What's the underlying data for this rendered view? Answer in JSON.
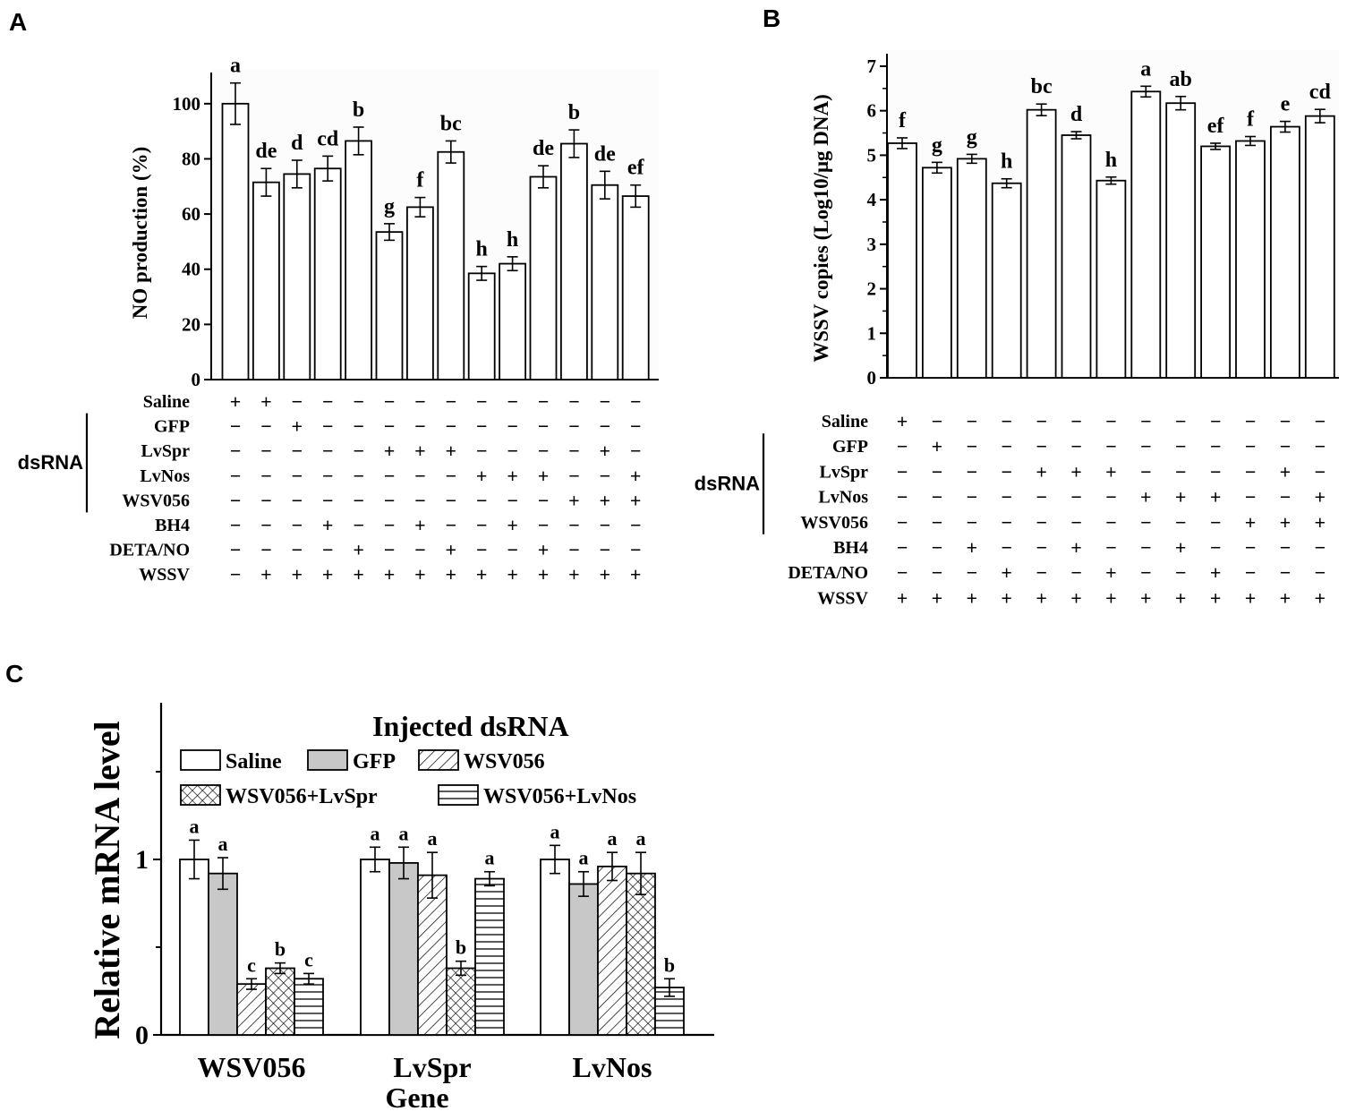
{
  "colors": {
    "ink": "#000000",
    "paper": "#ffffff",
    "gfp_fill": "#c8c8c8",
    "panel_bg": "#fcfcfc"
  },
  "chart_data": [
    {
      "panel": "A",
      "type": "bar",
      "ylabel": "NO production (%)",
      "ylim": [
        0,
        110
      ],
      "yticks": [
        "0",
        "20",
        "40",
        "60",
        "80",
        "100"
      ],
      "values": [
        100,
        71.5,
        74.5,
        76.5,
        86.5,
        53.5,
        62.5,
        82.5,
        38.5,
        42,
        73.5,
        85.5,
        70.5,
        66.5
      ],
      "errors": [
        7.5,
        5,
        5,
        4.5,
        5,
        3,
        3.5,
        4,
        2.5,
        2.5,
        4,
        5,
        5,
        4
      ],
      "letters": [
        "a",
        "de",
        "d",
        "cd",
        "b",
        "g",
        "f",
        "bc",
        "h",
        "h",
        "de",
        "b",
        "de",
        "ef"
      ],
      "rows": [
        "Saline",
        "GFP",
        "LvSpr",
        "LvNos",
        "WSV056",
        "BH4",
        "DETA/NO",
        "WSSV"
      ],
      "dsrna_label": "dsRNA",
      "matrix": [
        [
          "+",
          "+",
          "−",
          "−",
          "−",
          "−",
          "−",
          "−",
          "−",
          "−",
          "−",
          "−",
          "−",
          "−"
        ],
        [
          "−",
          "−",
          "+",
          "−",
          "−",
          "−",
          "−",
          "−",
          "−",
          "−",
          "−",
          "−",
          "−",
          "−"
        ],
        [
          "−",
          "−",
          "−",
          "−",
          "−",
          "+",
          "+",
          "+",
          "−",
          "−",
          "−",
          "−",
          "+",
          "−"
        ],
        [
          "−",
          "−",
          "−",
          "−",
          "−",
          "−",
          "−",
          "−",
          "+",
          "+",
          "+",
          "−",
          "−",
          "+"
        ],
        [
          "−",
          "−",
          "−",
          "−",
          "−",
          "−",
          "−",
          "−",
          "−",
          "−",
          "−",
          "+",
          "+",
          "+"
        ],
        [
          "−",
          "−",
          "−",
          "+",
          "−",
          "−",
          "+",
          "−",
          "−",
          "+",
          "−",
          "−",
          "−",
          "−"
        ],
        [
          "−",
          "−",
          "−",
          "−",
          "+",
          "−",
          "−",
          "+",
          "−",
          "−",
          "+",
          "−",
          "−",
          "−"
        ],
        [
          "−",
          "+",
          "+",
          "+",
          "+",
          "+",
          "+",
          "+",
          "+",
          "+",
          "+",
          "+",
          "+",
          "+"
        ]
      ]
    },
    {
      "panel": "B",
      "type": "bar",
      "ylabel": "WSSV copies (Log10/μg DNA)",
      "ylim": [
        0,
        7.2
      ],
      "yticks": [
        "0",
        "1",
        "2",
        "3",
        "4",
        "5",
        "6",
        "7"
      ],
      "values": [
        5.27,
        4.72,
        4.92,
        4.37,
        6.02,
        5.45,
        4.43,
        6.43,
        6.17,
        5.2,
        5.32,
        5.64,
        5.88
      ],
      "errors": [
        0.12,
        0.12,
        0.1,
        0.1,
        0.13,
        0.08,
        0.08,
        0.12,
        0.15,
        0.07,
        0.1,
        0.12,
        0.15
      ],
      "letters": [
        "f",
        "g",
        "g",
        "h",
        "bc",
        "d",
        "h",
        "a",
        "ab",
        "ef",
        "f",
        "e",
        "cd"
      ],
      "rows": [
        "Saline",
        "GFP",
        "LvSpr",
        "LvNos",
        "WSV056",
        "BH4",
        "DETA/NO",
        "WSSV"
      ],
      "dsrna_label": "dsRNA",
      "matrix": [
        [
          "+",
          "−",
          "−",
          "−",
          "−",
          "−",
          "−",
          "−",
          "−",
          "−",
          "−",
          "−",
          "−"
        ],
        [
          "−",
          "+",
          "−",
          "−",
          "−",
          "−",
          "−",
          "−",
          "−",
          "−",
          "−",
          "−",
          "−"
        ],
        [
          "−",
          "−",
          "−",
          "−",
          "+",
          "+",
          "+",
          "−",
          "−",
          "−",
          "−",
          "+",
          "−"
        ],
        [
          "−",
          "−",
          "−",
          "−",
          "−",
          "−",
          "−",
          "+",
          "+",
          "+",
          "−",
          "−",
          "+"
        ],
        [
          "−",
          "−",
          "−",
          "−",
          "−",
          "−",
          "−",
          "−",
          "−",
          "−",
          "+",
          "+",
          "+"
        ],
        [
          "−",
          "−",
          "+",
          "−",
          "−",
          "+",
          "−",
          "−",
          "+",
          "−",
          "−",
          "−",
          "−"
        ],
        [
          "−",
          "−",
          "−",
          "+",
          "−",
          "−",
          "+",
          "−",
          "−",
          "+",
          "−",
          "−",
          "−"
        ],
        [
          "+",
          "+",
          "+",
          "+",
          "+",
          "+",
          "+",
          "+",
          "+",
          "+",
          "+",
          "+",
          "+"
        ]
      ]
    },
    {
      "panel": "C",
      "type": "bar",
      "ylabel": "Relative mRNA level",
      "xlabel": "Gene",
      "ylim": [
        0,
        1.9
      ],
      "yticks": [
        "0",
        "1"
      ],
      "legend_title": "Injected dsRNA",
      "categories": [
        "WSV056",
        "LvSpr",
        "LvNos"
      ],
      "series": [
        {
          "name": "Saline",
          "pattern": "white",
          "values": [
            1.0,
            1.0,
            1.0
          ],
          "errors": [
            0.11,
            0.07,
            0.08
          ],
          "letters": [
            "a",
            "a",
            "a"
          ]
        },
        {
          "name": "GFP",
          "pattern": "gray",
          "values": [
            0.92,
            0.98,
            0.86
          ],
          "errors": [
            0.09,
            0.09,
            0.07
          ],
          "letters": [
            "a",
            "a",
            "a"
          ]
        },
        {
          "name": "WSV056",
          "pattern": "diagonal",
          "values": [
            0.29,
            0.91,
            0.96
          ],
          "errors": [
            0.03,
            0.13,
            0.08
          ],
          "letters": [
            "c",
            "a",
            "a"
          ]
        },
        {
          "name": "WSV056+LvSpr",
          "pattern": "crosshatch",
          "values": [
            0.38,
            0.38,
            0.92
          ],
          "errors": [
            0.03,
            0.04,
            0.12
          ],
          "letters": [
            "b",
            "b",
            "a"
          ]
        },
        {
          "name": "WSV056+LvNos",
          "pattern": "horizontal",
          "values": [
            0.32,
            0.89,
            0.27
          ],
          "errors": [
            0.03,
            0.04,
            0.05
          ],
          "letters": [
            "c",
            "a",
            "b"
          ]
        }
      ]
    }
  ],
  "panel_labels": [
    "A",
    "B",
    "C"
  ]
}
